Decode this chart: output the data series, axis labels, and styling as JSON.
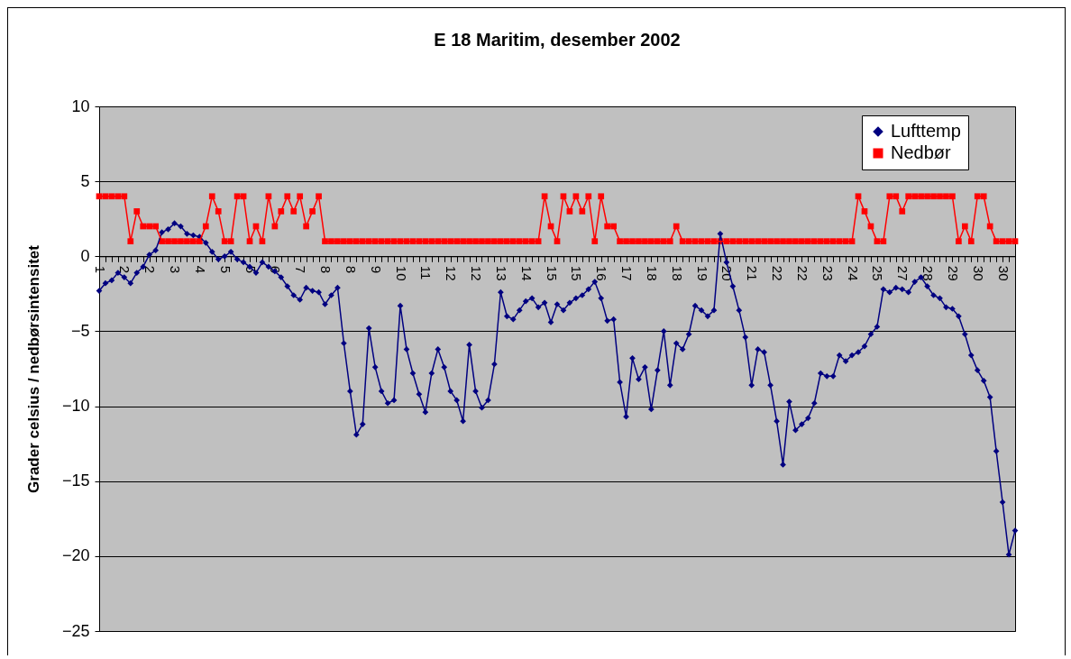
{
  "chart_data": {
    "type": "line",
    "title": "E 18 Maritim, desember 2002",
    "ylabel": "Grader celsius / nedbørsintensitet",
    "categories": [
      "1",
      null,
      null,
      null,
      "2",
      null,
      null,
      null,
      "2",
      null,
      null,
      null,
      "3",
      null,
      null,
      null,
      "4",
      null,
      null,
      null,
      "5",
      null,
      null,
      null,
      "5",
      null,
      null,
      null,
      "6",
      null,
      null,
      null,
      "7",
      null,
      null,
      null,
      "8",
      null,
      null,
      null,
      "8",
      null,
      null,
      null,
      "9",
      null,
      null,
      null,
      "10",
      null,
      null,
      null,
      "11",
      null,
      null,
      null,
      "12",
      null,
      null,
      null,
      "12",
      null,
      null,
      null,
      "13",
      null,
      null,
      null,
      "14",
      null,
      null,
      null,
      "15",
      null,
      null,
      null,
      "15",
      null,
      null,
      null,
      "16",
      null,
      null,
      null,
      "17",
      null,
      null,
      null,
      "18",
      null,
      null,
      null,
      "18",
      null,
      null,
      null,
      "19",
      null,
      null,
      null,
      "20",
      null,
      null,
      null,
      "21",
      null,
      null,
      null,
      "22",
      null,
      null,
      null,
      "22",
      null,
      null,
      null,
      "23",
      null,
      null,
      null,
      "24",
      null,
      null,
      null,
      "25",
      null,
      null,
      null,
      "27",
      null,
      null,
      null,
      "28",
      null,
      null,
      null,
      "29",
      null,
      null,
      null,
      "30",
      null,
      null,
      null,
      "30",
      null,
      null
    ],
    "series": [
      {
        "name": "Lufttemp",
        "color": "#000080",
        "marker": "diamond",
        "values": [
          -2.3,
          -1.8,
          -1.6,
          -1.1,
          -1.4,
          -1.8,
          -1.1,
          -0.7,
          0.1,
          0.4,
          1.6,
          1.8,
          2.2,
          2.0,
          1.5,
          1.4,
          1.3,
          0.9,
          0.3,
          -0.2,
          0,
          0.3,
          -0.2,
          -0.4,
          -0.7,
          -1.1,
          -0.4,
          -0.7,
          -1.0,
          -1.4,
          -2.0,
          -2.6,
          -2.9,
          -2.1,
          -2.3,
          -2.4,
          -3.2,
          -2.6,
          -2.1,
          -5.8,
          -9.0,
          -11.9,
          -11.2,
          -4.8,
          -7.4,
          -9.0,
          -9.8,
          -9.6,
          -3.3,
          -6.2,
          -7.8,
          -9.2,
          -10.4,
          -7.8,
          -6.2,
          -7.4,
          -9.0,
          -9.6,
          -11.0,
          -5.9,
          -9.0,
          -10.1,
          -9.6,
          -7.2,
          -2.4,
          -4.0,
          -4.2,
          -3.6,
          -3.0,
          -2.8,
          -3.4,
          -3.1,
          -4.4,
          -3.2,
          -3.6,
          -3.1,
          -2.8,
          -2.6,
          -2.2,
          -1.7,
          -2.8,
          -4.3,
          -4.2,
          -8.4,
          -10.7,
          -6.8,
          -8.2,
          -7.4,
          -10.2,
          -7.6,
          -5.0,
          -8.6,
          -5.8,
          -6.2,
          -5.2,
          -3.3,
          -3.6,
          -4.0,
          -3.6,
          1.5,
          -0.4,
          -2.0,
          -3.6,
          -5.4,
          -8.6,
          -6.2,
          -6.4,
          -8.6,
          -11.0,
          -13.9,
          -9.7,
          -11.6,
          -11.2,
          -10.8,
          -9.8,
          -7.8,
          -8.0,
          -8.0,
          -6.6,
          -7.0,
          -6.6,
          -6.4,
          -6.0,
          -5.2,
          -4.7,
          -2.2,
          -2.4,
          -2.1,
          -2.2,
          -2.4,
          -1.7,
          -1.4,
          -2.0,
          -2.6,
          -2.8,
          -3.4,
          -3.5,
          -4.0,
          -5.2,
          -6.6,
          -7.6,
          -8.3,
          -9.4,
          -13.0,
          -16.4,
          -19.9,
          -18.3
        ]
      },
      {
        "name": "Nedbør",
        "color": "#ff0000",
        "marker": "square",
        "values": [
          4,
          4,
          4,
          4,
          4,
          1,
          3,
          2,
          2,
          2,
          1,
          1,
          1,
          1,
          1,
          1,
          1,
          2,
          4,
          3,
          1,
          1,
          4,
          4,
          1,
          2,
          1,
          4,
          2,
          3,
          4,
          3,
          4,
          2,
          3,
          4,
          1,
          1,
          1,
          1,
          1,
          1,
          1,
          1,
          1,
          1,
          1,
          1,
          1,
          1,
          1,
          1,
          1,
          1,
          1,
          1,
          1,
          1,
          1,
          1,
          1,
          1,
          1,
          1,
          1,
          1,
          1,
          1,
          1,
          1,
          1,
          4,
          2,
          1,
          4,
          3,
          4,
          3,
          4,
          1,
          4,
          2,
          2,
          1,
          1,
          1,
          1,
          1,
          1,
          1,
          1,
          1,
          2,
          1,
          1,
          1,
          1,
          1,
          1,
          1,
          1,
          1,
          1,
          1,
          1,
          1,
          1,
          1,
          1,
          1,
          1,
          1,
          1,
          1,
          1,
          1,
          1,
          1,
          1,
          1,
          1,
          4,
          3,
          2,
          1,
          1,
          4,
          4,
          3,
          4,
          4,
          4,
          4,
          4,
          4,
          4,
          4,
          1,
          2,
          1,
          4,
          4,
          2,
          1,
          1,
          1,
          1
        ]
      }
    ],
    "ylim": [
      -25,
      10
    ],
    "yticks": [
      -25,
      -20,
      -15,
      -10,
      -5,
      0,
      5,
      10
    ],
    "grid": "y",
    "legend": "top right",
    "line_style": "solid"
  }
}
